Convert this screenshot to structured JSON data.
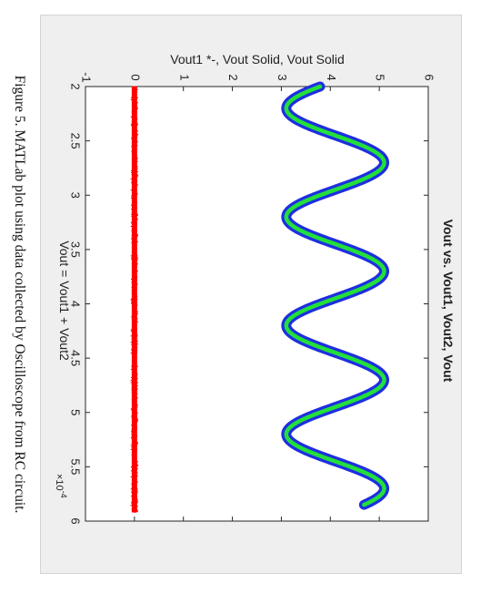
{
  "caption": "Figure 5. MATLab plot using data collected by Oscilloscope from RC circuit.",
  "chart_data": {
    "type": "line",
    "title": "Vout vs. Vout1, Vout2, Vout",
    "xlabel": "Vout = Vout1 + Vout2",
    "ylabel": "Vout1 *-, Vout Solid, Vout Solid",
    "x_multiplier_label": "×10",
    "x_multiplier_exponent": "-4",
    "xlim": [
      2,
      6
    ],
    "ylim": [
      -1,
      6
    ],
    "x_ticks": [
      "2",
      "2.5",
      "3",
      "3.5",
      "4",
      "4.5",
      "5",
      "5.5",
      "6"
    ],
    "y_ticks": [
      "-1",
      "0",
      "1",
      "2",
      "3",
      "4",
      "5",
      "6"
    ],
    "x_start": 2.0,
    "x_end": 5.85,
    "series": [
      {
        "name": "",
        "kind": "sine",
        "color": "#1f2fe0",
        "marker": "*",
        "offset": 4.1,
        "amplitude": 1.0,
        "period": 1.0,
        "peak_at": 2.7,
        "values_at_ends": [
          3.85,
          3.95
        ]
      },
      {
        "name": "",
        "kind": "sine",
        "color": "#22e03a",
        "marker": "solid",
        "offset": 4.1,
        "amplitude": 1.0,
        "period": 1.0,
        "peak_at": 2.7,
        "values_at_ends": [
          3.85,
          3.95
        ]
      },
      {
        "name": "",
        "kind": "constant",
        "color": "#ff0000",
        "marker": "solid",
        "value": 0.0,
        "noise": 0.08
      }
    ]
  }
}
